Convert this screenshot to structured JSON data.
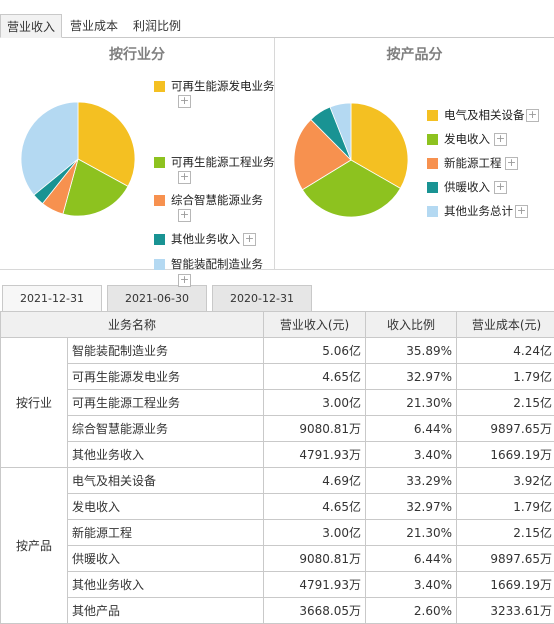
{
  "tabs": [
    "营业收入",
    "营业成本",
    "利润比例"
  ],
  "panels": {
    "left": {
      "title": "按行业分",
      "legend": [
        "可再生能源发电业务",
        "可再生能源工程业务",
        "综合智慧能源业务",
        "其他业务收入",
        "智能装配制造业务"
      ],
      "slices": [
        {
          "label": "可再生能源发电业务",
          "value": 32.97,
          "color": "#F4C022"
        },
        {
          "label": "可再生能源工程业务",
          "value": 21.3,
          "color": "#8DC21F"
        },
        {
          "label": "综合智慧能源业务",
          "value": 6.44,
          "color": "#F7914F"
        },
        {
          "label": "其他业务收入",
          "value": 3.4,
          "color": "#199393"
        },
        {
          "label": "智能装配制造业务",
          "value": 35.89,
          "color": "#B4D9F2"
        }
      ]
    },
    "right": {
      "title": "按产品分",
      "legend": [
        "电气及相关设备",
        "发电收入",
        "新能源工程",
        "供暖收入",
        "其他业务总计"
      ],
      "slices": [
        {
          "label": "电气及相关设备",
          "value": 33.29,
          "color": "#F4C022"
        },
        {
          "label": "发电收入",
          "value": 32.97,
          "color": "#8DC21F"
        },
        {
          "label": "新能源工程",
          "value": 21.3,
          "color": "#F7914F"
        },
        {
          "label": "供暖收入",
          "value": 6.44,
          "color": "#199393"
        },
        {
          "label": "其他业务总计",
          "value": 6.0,
          "color": "#B4D9F2"
        }
      ]
    }
  },
  "date_tabs": [
    "2021-12-31",
    "2021-06-30",
    "2020-12-31"
  ],
  "table": {
    "headers": [
      "业务名称",
      "营业收入(元)",
      "收入比例",
      "营业成本(元)"
    ],
    "groups": [
      {
        "label": "按行业",
        "rows": [
          [
            "智能装配制造业务",
            "5.06亿",
            "35.89%",
            "4.24亿"
          ],
          [
            "可再生能源发电业务",
            "4.65亿",
            "32.97%",
            "1.79亿"
          ],
          [
            "可再生能源工程业务",
            "3.00亿",
            "21.30%",
            "2.15亿"
          ],
          [
            "综合智慧能源业务",
            "9080.81万",
            "6.44%",
            "9897.65万"
          ],
          [
            "其他业务收入",
            "4791.93万",
            "3.40%",
            "1669.19万"
          ]
        ]
      },
      {
        "label": "按产品",
        "rows": [
          [
            "电气及相关设备",
            "4.69亿",
            "33.29%",
            "3.92亿"
          ],
          [
            "发电收入",
            "4.65亿",
            "32.97%",
            "1.79亿"
          ],
          [
            "新能源工程",
            "3.00亿",
            "21.30%",
            "2.15亿"
          ],
          [
            "供暖收入",
            "9080.81万",
            "6.44%",
            "9897.65万"
          ],
          [
            "其他业务收入",
            "4791.93万",
            "3.40%",
            "1669.19万"
          ],
          [
            "其他产品",
            "3668.05万",
            "2.60%",
            "3233.61万"
          ]
        ]
      }
    ]
  },
  "chart_data": [
    {
      "type": "pie",
      "title": "按行业分",
      "categories": [
        "可再生能源发电业务",
        "可再生能源工程业务",
        "综合智慧能源业务",
        "其他业务收入",
        "智能装配制造业务"
      ],
      "values": [
        32.97,
        21.3,
        6.44,
        3.4,
        35.89
      ]
    },
    {
      "type": "pie",
      "title": "按产品分",
      "categories": [
        "电气及相关设备",
        "发电收入",
        "新能源工程",
        "供暖收入",
        "其他业务总计"
      ],
      "values": [
        33.29,
        32.97,
        21.3,
        6.44,
        6.0
      ]
    }
  ]
}
